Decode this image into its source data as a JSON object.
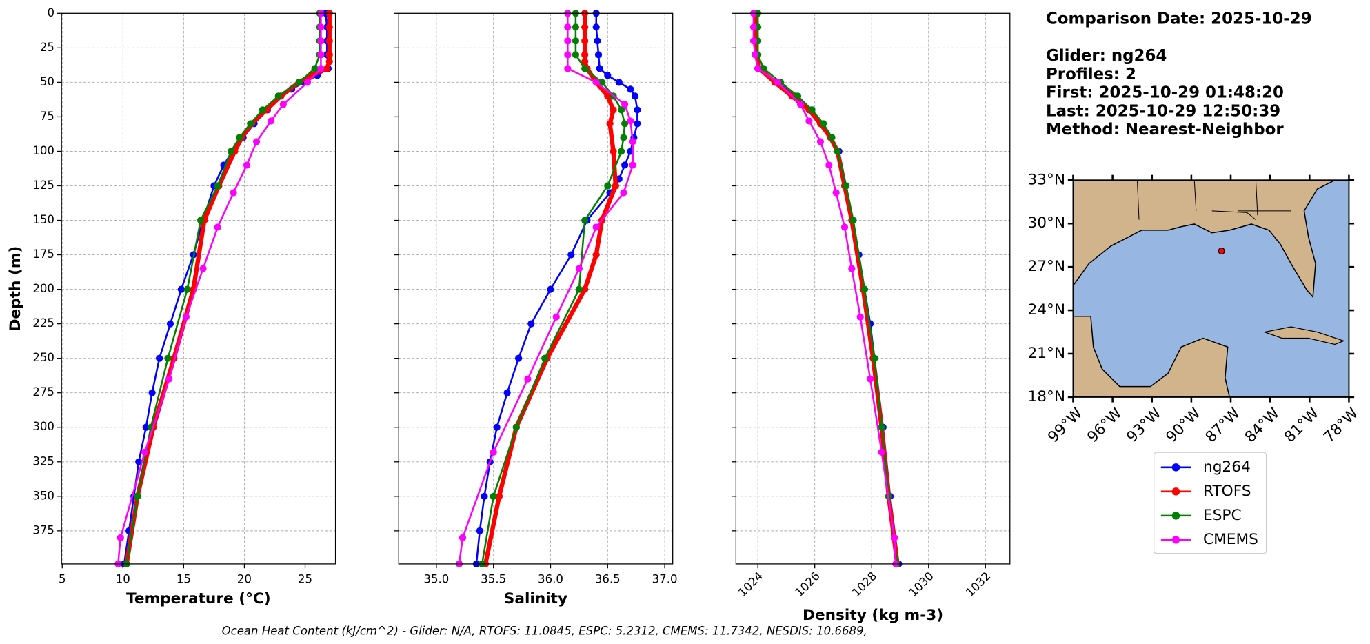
{
  "info": {
    "lines": [
      "Comparison Date: 2025-10-29",
      "Glider: ng264",
      "Profiles: 2",
      "First: 2025-10-29 01:48:20",
      "Last: 2025-10-29 12:50:39",
      "Method: Nearest-Neighbor"
    ]
  },
  "footer": "Ocean Heat Content (kJ/cm^2) - Glider: N/A,  RTOFS: 11.0845,  ESPC: 5.2312,  CMEMS: 11.7342,  NESDIS: 10.6689,",
  "chart_data": [
    {
      "type": "line",
      "xlabel": "Temperature (°C)",
      "ylabel": "Depth (m)",
      "xlim": [
        4.94,
        27.5
      ],
      "xticks": [
        5,
        10,
        15,
        20,
        25
      ],
      "ylim": [
        0,
        399
      ],
      "y_inverted": true,
      "yticks": [
        0,
        25,
        50,
        75,
        100,
        125,
        150,
        175,
        200,
        225,
        250,
        275,
        300,
        325,
        350,
        375
      ],
      "ytick_labels": true,
      "grid": true,
      "series": [
        {
          "name": "ng264",
          "color": "#0000ff",
          "depth": [
            0,
            10,
            20,
            30,
            40,
            45,
            50,
            55,
            60,
            70,
            80,
            90,
            100,
            110,
            125,
            150,
            175,
            200,
            225,
            250,
            275,
            300,
            325,
            350,
            375,
            399
          ],
          "values": [
            26.7,
            26.8,
            26.8,
            26.8,
            26.9,
            26,
            24.9,
            23.9,
            23,
            21.9,
            20.8,
            19.9,
            19,
            18.3,
            17.5,
            16.6,
            15.8,
            14.8,
            13.9,
            13,
            12.4,
            11.9,
            11.3,
            10.9,
            10.5,
            10.1
          ]
        },
        {
          "name": "RTOFS",
          "color": "#ff0000",
          "depth": [
            0,
            10,
            20,
            30,
            35,
            40,
            45,
            50,
            60,
            70,
            80,
            90,
            100,
            125,
            150,
            200,
            250,
            300,
            350,
            399
          ],
          "values": [
            27,
            27,
            27,
            27,
            27,
            26.8,
            25.5,
            24.5,
            23,
            21.8,
            20.6,
            19.8,
            19.2,
            17.9,
            16.7,
            15.8,
            14.2,
            12.5,
            11.2,
            10.3
          ]
        },
        {
          "name": "ESPC",
          "color": "#008000",
          "depth": [
            0,
            10,
            20,
            30,
            40,
            50,
            60,
            70,
            80,
            90,
            100,
            125,
            150,
            200,
            250,
            300,
            350,
            399
          ],
          "values": [
            26.2,
            26.2,
            26.2,
            26.2,
            25.8,
            24.5,
            22.8,
            21.5,
            20.5,
            19.6,
            18.9,
            17.8,
            16.4,
            15.3,
            13.7,
            12.3,
            11.2,
            10.3
          ]
        },
        {
          "name": "CMEMS",
          "color": "#ff00ff",
          "depth": [
            0,
            10,
            20,
            30,
            40,
            50,
            66,
            78,
            93,
            110,
            130,
            155,
            185,
            220,
            265,
            318,
            380,
            399
          ],
          "values": [
            26.3,
            26.3,
            26.3,
            26.3,
            26.3,
            25.2,
            23.2,
            22.2,
            21,
            20.2,
            19.1,
            17.8,
            16.6,
            15.2,
            13.8,
            11.8,
            9.8,
            9.6
          ]
        }
      ]
    },
    {
      "type": "line",
      "xlabel": "Salinity",
      "xlim": [
        34.67,
        37.07
      ],
      "xticks": [
        {
          "value": 35,
          "label": "35.0"
        },
        35.5,
        {
          "value": 36,
          "label": "36.0"
        },
        36.5,
        {
          "value": 37,
          "label": "37.0"
        }
      ],
      "ylim": [
        0,
        399
      ],
      "y_inverted": true,
      "yticks": [
        0,
        25,
        50,
        75,
        100,
        125,
        150,
        175,
        200,
        225,
        250,
        275,
        300,
        325,
        350,
        375
      ],
      "ytick_labels": false,
      "grid": true,
      "series": [
        {
          "color": "#0000ff",
          "depth": [
            0,
            10,
            20,
            30,
            40,
            45,
            50,
            55,
            60,
            70,
            80,
            90,
            100,
            110,
            120,
            130,
            150,
            175,
            200,
            225,
            250,
            275,
            300,
            325,
            350,
            375,
            399
          ],
          "values": [
            36.4,
            36.4,
            36.41,
            36.42,
            36.43,
            36.5,
            36.6,
            36.7,
            36.74,
            36.76,
            36.76,
            36.73,
            36.7,
            36.65,
            36.6,
            36.52,
            36.32,
            36.18,
            36,
            35.83,
            35.72,
            35.62,
            35.53,
            35.47,
            35.42,
            35.38,
            35.35
          ]
        },
        {
          "color": "#ff0000",
          "depth": [
            0,
            10,
            20,
            30,
            35,
            40,
            50,
            60,
            70,
            80,
            100,
            125,
            150,
            175,
            200,
            250,
            300,
            350,
            399
          ],
          "values": [
            36.3,
            36.3,
            36.3,
            36.3,
            36.3,
            36.32,
            36.4,
            36.5,
            36.55,
            36.52,
            36.55,
            36.57,
            36.45,
            36.4,
            36.3,
            35.97,
            35.7,
            35.55,
            35.43
          ]
        },
        {
          "color": "#008000",
          "depth": [
            0,
            10,
            20,
            30,
            40,
            50,
            60,
            70,
            80,
            90,
            100,
            125,
            150,
            200,
            250,
            300,
            350,
            399
          ],
          "values": [
            36.22,
            36.22,
            36.22,
            36.22,
            36.3,
            36.45,
            36.55,
            36.62,
            36.65,
            36.64,
            36.62,
            36.5,
            36.3,
            36.25,
            35.95,
            35.7,
            35.5,
            35.4
          ]
        },
        {
          "color": "#ff00ff",
          "depth": [
            0,
            10,
            20,
            30,
            40,
            50,
            66,
            78,
            93,
            110,
            130,
            155,
            185,
            220,
            265,
            318,
            380,
            399
          ],
          "values": [
            36.15,
            36.15,
            36.15,
            36.15,
            36.15,
            36.4,
            36.65,
            36.7,
            36.72,
            36.72,
            36.64,
            36.4,
            36.25,
            36.05,
            35.8,
            35.5,
            35.23,
            35.2
          ]
        }
      ]
    },
    {
      "type": "line",
      "xlabel": "Density (kg m-3)",
      "xlim": [
        1023.23,
        1032.86
      ],
      "xticks": [
        1024,
        1026,
        1028,
        1030,
        1032
      ],
      "ylim": [
        0,
        399
      ],
      "y_inverted": true,
      "yticks": [
        0,
        25,
        50,
        75,
        100,
        125,
        150,
        175,
        200,
        225,
        250,
        275,
        300,
        325,
        350,
        375
      ],
      "ytick_labels": false,
      "grid": true,
      "xtick_rotation": 45,
      "series": [
        {
          "color": "#0000ff",
          "depth": [
            0,
            10,
            20,
            30,
            40,
            50,
            60,
            70,
            80,
            90,
            100,
            125,
            150,
            175,
            200,
            225,
            250,
            300,
            350,
            399
          ],
          "values": [
            1023.9,
            1023.9,
            1023.9,
            1023.95,
            1024,
            1024.7,
            1025.3,
            1025.9,
            1026.3,
            1026.6,
            1026.85,
            1027.1,
            1027.35,
            1027.55,
            1027.75,
            1027.95,
            1028.1,
            1028.4,
            1028.65,
            1028.95
          ]
        },
        {
          "color": "#ff0000",
          "depth": [
            0,
            10,
            20,
            30,
            40,
            50,
            60,
            70,
            80,
            90,
            100,
            125,
            150,
            200,
            250,
            300,
            350,
            399
          ],
          "values": [
            1023.95,
            1023.95,
            1023.95,
            1023.95,
            1024.05,
            1024.6,
            1025.2,
            1025.8,
            1026.2,
            1026.55,
            1026.8,
            1027.05,
            1027.3,
            1027.7,
            1028.05,
            1028.35,
            1028.6,
            1028.9
          ]
        },
        {
          "color": "#008000",
          "depth": [
            0,
            10,
            20,
            30,
            40,
            50,
            60,
            70,
            80,
            90,
            100,
            125,
            150,
            200,
            250,
            300,
            350,
            399
          ],
          "values": [
            1024,
            1024,
            1024,
            1024,
            1024.2,
            1024.8,
            1025.4,
            1025.9,
            1026.3,
            1026.6,
            1026.8,
            1027.1,
            1027.35,
            1027.75,
            1028.1,
            1028.35,
            1028.6,
            1028.9
          ]
        },
        {
          "color": "#ff00ff",
          "depth": [
            0,
            10,
            20,
            30,
            40,
            50,
            66,
            78,
            93,
            110,
            130,
            155,
            185,
            220,
            265,
            318,
            380,
            399
          ],
          "values": [
            1023.85,
            1023.85,
            1023.85,
            1023.9,
            1024,
            1024.7,
            1025.5,
            1025.8,
            1026.2,
            1026.5,
            1026.75,
            1027.05,
            1027.3,
            1027.6,
            1027.95,
            1028.35,
            1028.8,
            1028.85
          ]
        }
      ]
    },
    {
      "type": "map",
      "xlim": [
        -99,
        -78
      ],
      "ylim": [
        18,
        33
      ],
      "xticks": [
        {
          "value": -99,
          "label": "99°W"
        },
        {
          "value": -96,
          "label": "96°W"
        },
        {
          "value": -93,
          "label": "93°W"
        },
        {
          "value": -90,
          "label": "90°W"
        },
        {
          "value": -87,
          "label": "87°W"
        },
        {
          "value": -84,
          "label": "84°W"
        },
        {
          "value": -81,
          "label": "81°W"
        },
        {
          "value": -78,
          "label": "78°W"
        }
      ],
      "yticks": [
        {
          "value": 18,
          "label": "18°N"
        },
        {
          "value": 21,
          "label": "21°N"
        },
        {
          "value": 24,
          "label": "24°N"
        },
        {
          "value": 27,
          "label": "27°N"
        },
        {
          "value": 30,
          "label": "30°N"
        },
        {
          "value": 33,
          "label": "33°N"
        }
      ],
      "series": [
        {
          "color": "#ff0000",
          "x": [
            -87.7
          ],
          "values": [
            28.1
          ]
        }
      ]
    }
  ]
}
